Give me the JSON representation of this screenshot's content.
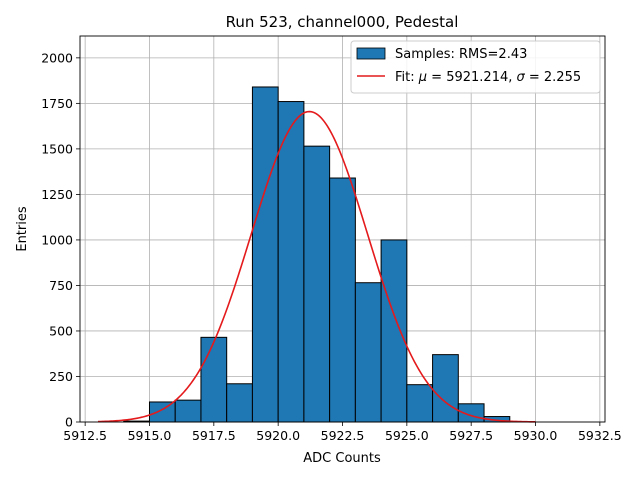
{
  "chart_data": {
    "type": "bar",
    "title": "Run 523, channel000, Pedestal",
    "xlabel": "ADC Counts",
    "ylabel": "Entries",
    "xlim": [
      5912.3,
      5932.7
    ],
    "ylim": [
      0,
      2120
    ],
    "xticks": [
      5912.5,
      5915.0,
      5917.5,
      5920.0,
      5922.5,
      5925.0,
      5927.5,
      5930.0,
      5932.5
    ],
    "xtick_labels": [
      "5912.5",
      "5915.0",
      "5917.5",
      "5920.0",
      "5922.5",
      "5925.0",
      "5927.5",
      "5930.0",
      "5932.5"
    ],
    "yticks": [
      0,
      250,
      500,
      750,
      1000,
      1250,
      1500,
      1750,
      2000
    ],
    "ytick_labels": [
      "0",
      "250",
      "500",
      "750",
      "1000",
      "1250",
      "1500",
      "1750",
      "2000"
    ],
    "grid": true,
    "legend_position": "top-right",
    "bin_edges": [
      5913,
      5914,
      5915,
      5916,
      5917,
      5918,
      5919,
      5920,
      5921,
      5922,
      5923,
      5924,
      5925,
      5926,
      5927,
      5928,
      5929,
      5930,
      5931,
      5932
    ],
    "series": [
      {
        "name": "Samples: RMS=2.43",
        "type": "histogram",
        "color": "#1f77b4",
        "edgecolor": "#000000",
        "values": [
          0,
          5,
          110,
          120,
          465,
          210,
          1840,
          1760,
          1515,
          1340,
          765,
          1000,
          205,
          370,
          100,
          30,
          0,
          0,
          0
        ]
      },
      {
        "name": "Fit: μ = 5921.214, σ = 2.255",
        "legend_prefix": "Fit: ",
        "legend_mu_symbol": "μ",
        "legend_mu_text": " = 5921.214, ",
        "legend_sigma_symbol": "σ",
        "legend_sigma_text": " = 2.255",
        "type": "gaussian",
        "color": "#e41a1c",
        "mu": 5921.214,
        "sigma": 2.255,
        "amplitude": 1705,
        "x_range": [
          5913,
          5930
        ]
      }
    ]
  }
}
